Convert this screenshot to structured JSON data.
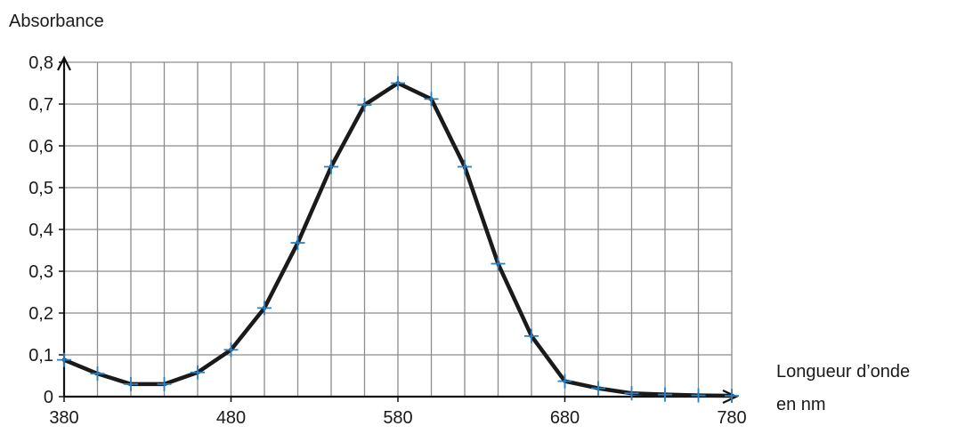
{
  "chart_data": {
    "type": "line",
    "title": "",
    "ylabel": "Absorbance",
    "xlabel_line1": "Longueur d’onde",
    "xlabel_line2": "en nm",
    "xlim": [
      380,
      780
    ],
    "ylim": [
      0,
      0.8
    ],
    "grid": true,
    "x_major_grid_step": 20,
    "y_major_grid_step": 0.1,
    "x_ticks": [
      380,
      480,
      580,
      680,
      780
    ],
    "x_tick_labels": [
      "380",
      "480",
      "580",
      "680",
      "780"
    ],
    "y_ticks": [
      0,
      0.1,
      0.2,
      0.3,
      0.4,
      0.5,
      0.6,
      0.7,
      0.8
    ],
    "y_tick_labels": [
      "0",
      "0,1",
      "0,2",
      "0,3",
      "0,4",
      "0,5",
      "0,6",
      "0,7",
      "0,8"
    ],
    "series": [
      {
        "x": [
          380,
          400,
          420,
          440,
          460,
          480,
          500,
          520,
          540,
          560,
          580,
          600,
          620,
          640,
          660,
          680,
          700,
          720,
          740,
          760,
          780
        ],
        "y": [
          0.088,
          0.055,
          0.03,
          0.03,
          0.058,
          0.112,
          0.212,
          0.368,
          0.55,
          0.698,
          0.75,
          0.712,
          0.55,
          0.318,
          0.145,
          0.037,
          0.02,
          0.008,
          0.005,
          0.003,
          0.002
        ],
        "line_color": "#1a1a1a",
        "marker": "plus",
        "marker_color": "#2a7fc0"
      }
    ]
  }
}
